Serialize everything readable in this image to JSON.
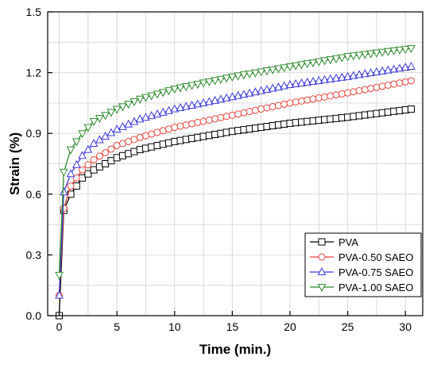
{
  "chart_data": {
    "type": "line",
    "xlabel": "Time (min.)",
    "ylabel": "Strain (%)",
    "xlim": [
      -1,
      31.5
    ],
    "ylim": [
      0,
      1.5
    ],
    "x_ticks": [
      0,
      5,
      10,
      15,
      20,
      25,
      30
    ],
    "y_ticks": [
      0.0,
      0.3,
      0.6,
      0.9,
      1.2,
      1.5
    ],
    "y_tick_labels": [
      "0.0",
      "0.3",
      "0.6",
      "0.9",
      "1.2",
      "1.5"
    ],
    "grid": true,
    "legend_position": "bottom-right",
    "series": [
      {
        "name": "PVA",
        "color": "#000000",
        "marker": "square",
        "x": [
          0,
          0.4,
          1,
          2,
          3,
          5,
          7,
          10,
          15,
          20,
          25,
          30.5
        ],
        "values": [
          0,
          0.52,
          0.6,
          0.68,
          0.72,
          0.78,
          0.82,
          0.86,
          0.91,
          0.95,
          0.98,
          1.02
        ]
      },
      {
        "name": "PVA-0.50 SAEO",
        "color": "#e8423a",
        "marker": "circle",
        "x": [
          0,
          0.4,
          1,
          2,
          3,
          5,
          7,
          10,
          15,
          20,
          25,
          30.5
        ],
        "values": [
          0.1,
          0.53,
          0.64,
          0.72,
          0.77,
          0.84,
          0.88,
          0.93,
          0.99,
          1.05,
          1.1,
          1.16
        ]
      },
      {
        "name": "PVA-0.75 SAEO",
        "color": "#3b3bd9",
        "marker": "triangle-up",
        "x": [
          0,
          0.4,
          1,
          2,
          3,
          5,
          7,
          10,
          15,
          20,
          25,
          30.5
        ],
        "values": [
          0.1,
          0.61,
          0.7,
          0.79,
          0.85,
          0.92,
          0.97,
          1.02,
          1.08,
          1.14,
          1.18,
          1.23
        ]
      },
      {
        "name": "PVA-1.00 SAEO",
        "color": "#2e8b2e",
        "marker": "triangle-down",
        "x": [
          0,
          0.4,
          1,
          2,
          3,
          5,
          7,
          10,
          15,
          20,
          25,
          30.5
        ],
        "values": [
          0.2,
          0.71,
          0.82,
          0.9,
          0.96,
          1.02,
          1.07,
          1.12,
          1.18,
          1.23,
          1.28,
          1.32
        ]
      }
    ]
  }
}
